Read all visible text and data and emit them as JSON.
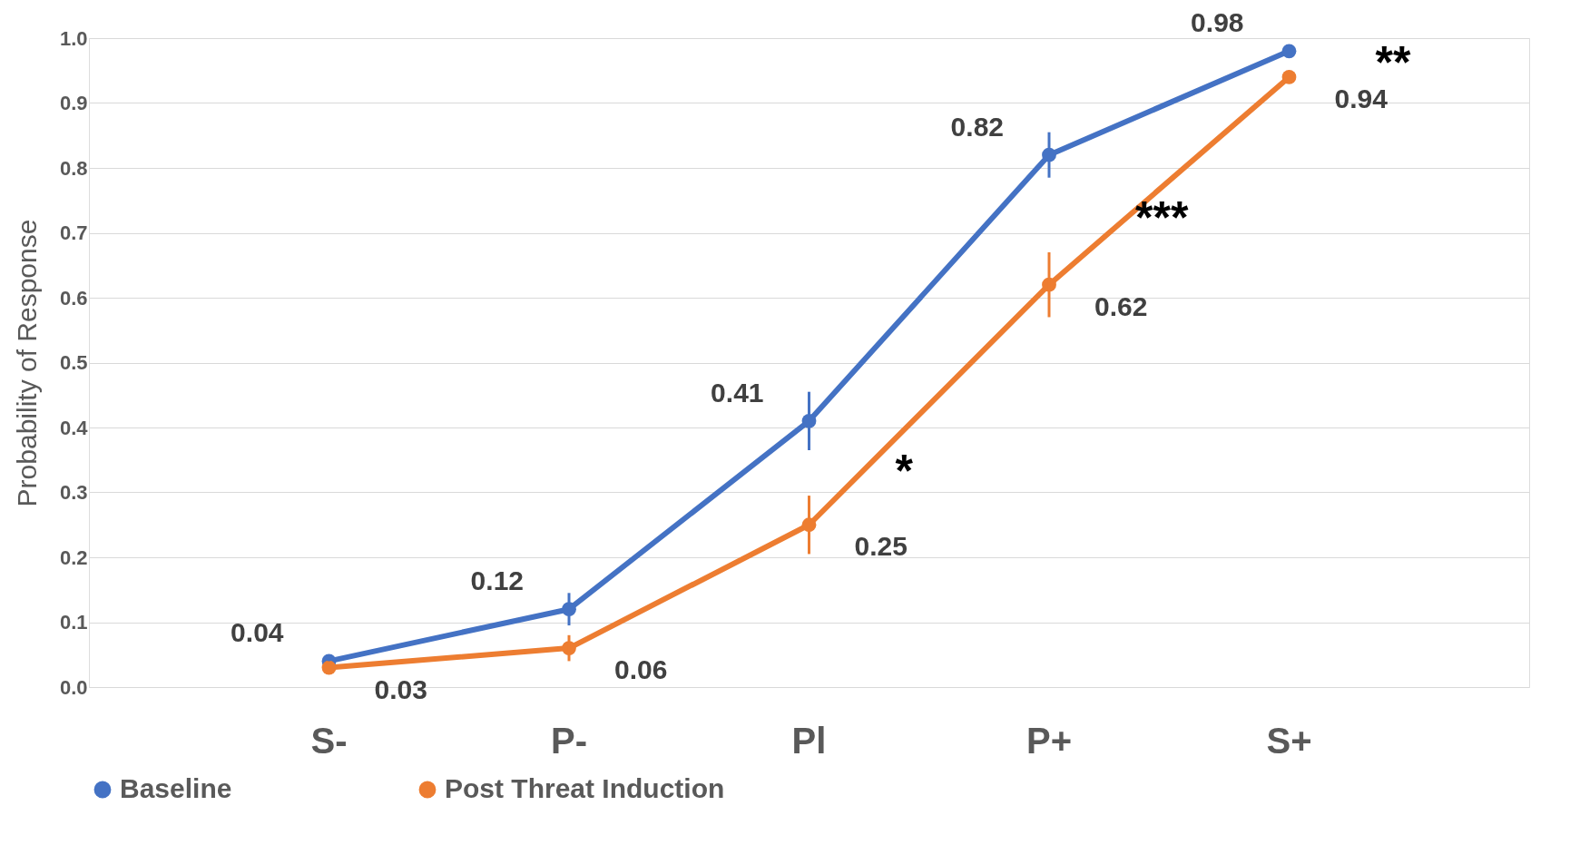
{
  "chart_data": {
    "type": "line",
    "ylabel": "Probability of Response",
    "categories": [
      "S-",
      "P-",
      "Pl",
      "P+",
      "S+"
    ],
    "series": [
      {
        "name": "Baseline",
        "color": "#4472c4",
        "values": [
          0.04,
          0.12,
          0.41,
          0.82,
          0.98
        ],
        "value_labels": [
          "0.04",
          "0.12",
          "0.41",
          "0.82",
          "0.98"
        ],
        "errors": [
          0.01,
          0.025,
          0.045,
          0.035,
          0.01
        ]
      },
      {
        "name": "Post Threat Induction",
        "color": "#ed7d31",
        "values": [
          0.03,
          0.06,
          0.25,
          0.62,
          0.94
        ],
        "value_labels": [
          "0.03",
          "0.06",
          "0.25",
          "0.62",
          "0.94"
        ],
        "errors": [
          0.01,
          0.02,
          0.045,
          0.05,
          0.01
        ]
      }
    ],
    "ylim": [
      0,
      1
    ],
    "yticks": [
      {
        "value": 0,
        "label": "0.0"
      },
      0.1,
      0.2,
      0.3,
      0.4,
      0.5,
      0.6,
      0.7,
      0.8,
      0.9,
      {
        "value": 1,
        "label": "1.0"
      }
    ],
    "grid": "y",
    "legend": "bottom",
    "marker": "circle",
    "line_style": "solid",
    "annotations": [
      "*",
      "***",
      "**"
    ]
  }
}
